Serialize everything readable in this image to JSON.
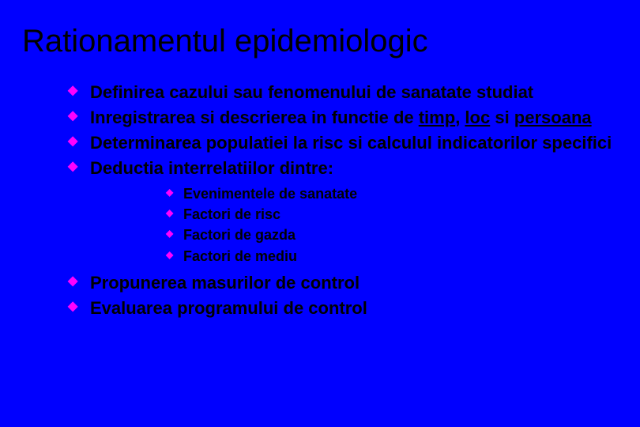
{
  "background_color": "#0000ff",
  "bullet_color": "#ff00ff",
  "text_color": "#000000",
  "title_fontsize": 40,
  "level1_fontsize": 22,
  "level2_fontsize": 18,
  "title": "Rationamentul epidemiologic",
  "bullets": {
    "b1": "Definirea cazului sau fenomenului de sanatate studiat",
    "b2_pre": "Inregistrarea si descrierea in functie de ",
    "b2_u1": "timp",
    "b2_sep1": ", ",
    "b2_u2": "loc",
    "b2_sep2": " si ",
    "b2_u3": "persoana",
    "b3": "Determinarea populatiei la risc si calculul indicatorilor specifici",
    "b4": "Deductia interrelatiilor dintre:",
    "b5": "Propunerea masurilor de control",
    "b6": "Evaluarea programului de control"
  },
  "sub": {
    "s1": "Evenimentele de sanatate",
    "s2": "Factori de risc",
    "s3": "Factori de gazda",
    "s4": "Factori de mediu"
  }
}
